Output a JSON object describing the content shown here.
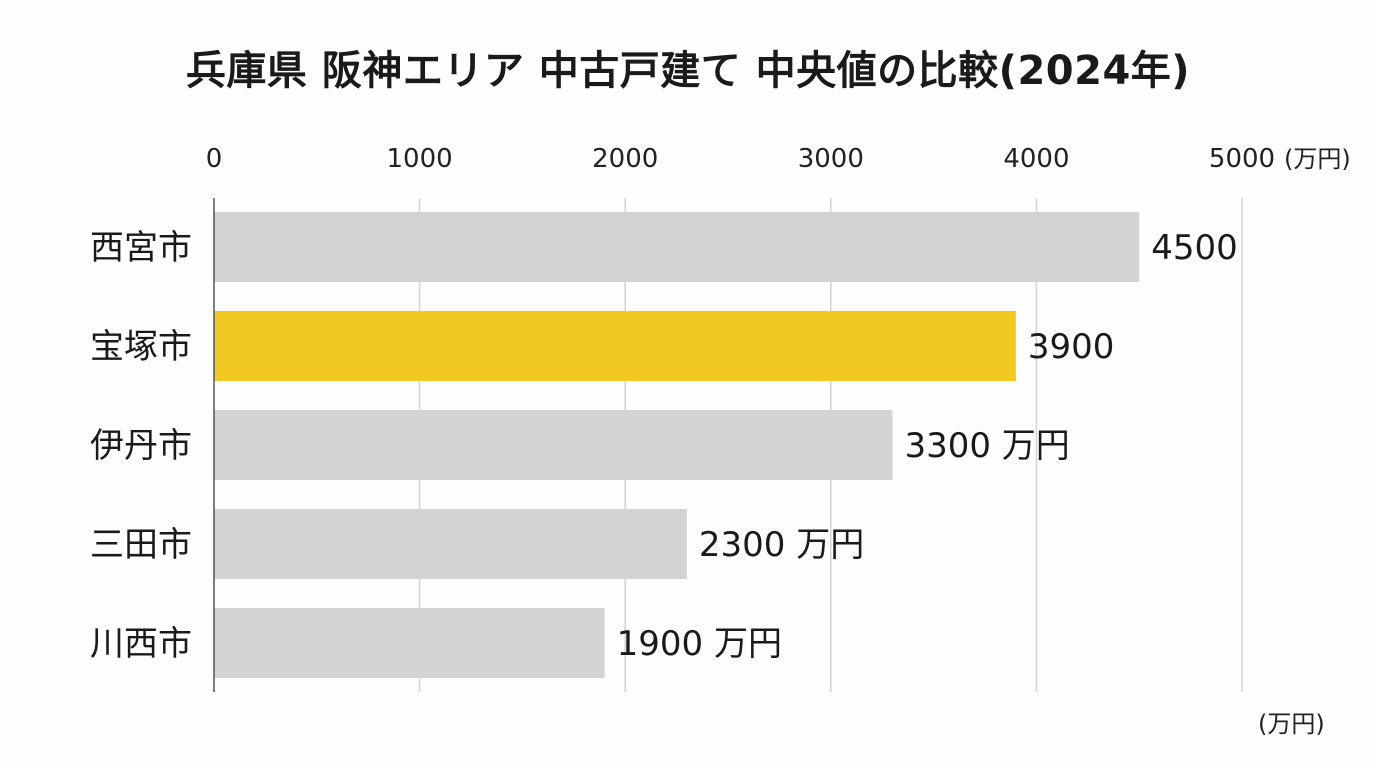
{
  "chart_data": {
    "type": "bar",
    "orientation": "horizontal",
    "title": "兵庫県 阪神エリア 中古戸建て 中央値の比較(2024年)",
    "categories": [
      "西宮市",
      "宝塚市",
      "伊丹市",
      "三田市",
      "川西市"
    ],
    "values": [
      4500,
      3900,
      3300,
      2300,
      1900
    ],
    "value_labels": [
      "4500",
      "3900",
      "3300 万円",
      "2300 万円",
      "1900 万円"
    ],
    "highlight_category": "宝塚市",
    "x_ticks": [
      "0",
      "1000",
      "2000",
      "3000",
      "4000",
      "5000"
    ],
    "x_tick_values": [
      0,
      1000,
      2000,
      3000,
      4000,
      5000
    ],
    "xlim": [
      0,
      5000
    ],
    "x_unit_top": "(万円)",
    "x_unit_bottom": "(万円)",
    "axis_position": "top",
    "grid": true,
    "colors": {
      "bar_default": "#d3d3d3",
      "bar_highlight": "#f2c921",
      "grid": "#d4d4d4",
      "text": "#1a1a1a"
    }
  }
}
